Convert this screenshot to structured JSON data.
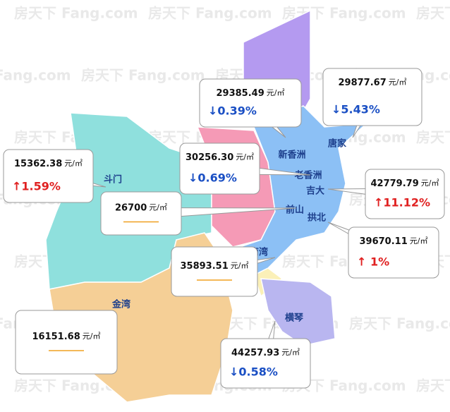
{
  "watermark": "房天下 Fang.com",
  "regions": [
    {
      "label": "斗门"
    },
    {
      "label": "金湾"
    },
    {
      "label": "新香洲"
    },
    {
      "label": "唐家"
    },
    {
      "label": "老香洲"
    },
    {
      "label": "吉大"
    },
    {
      "label": "前山"
    },
    {
      "label": "拱北"
    },
    {
      "label": "南湾"
    },
    {
      "label": "横琴"
    }
  ],
  "callouts": [
    {
      "price": "29385.49",
      "unit": "元/㎡",
      "change": "↓0.39%",
      "color": "#1a4fc4"
    },
    {
      "price": "29877.67",
      "unit": "元/㎡",
      "change": "↓5.43%",
      "color": "#1a4fc4"
    },
    {
      "price": "30256.30",
      "unit": "元/㎡",
      "change": "↓0.69%",
      "color": "#1a4fc4"
    },
    {
      "price": "15362.38",
      "unit": "元/㎡",
      "change": "↑1.59%",
      "color": "#e02020"
    },
    {
      "price": "26700",
      "unit": "元/㎡"
    },
    {
      "price": "42779.79",
      "unit": "元/㎡",
      "change": "↑11.12%",
      "color": "#e02020"
    },
    {
      "price": "39670.11",
      "unit": "元/㎡",
      "change": "↑ 1%",
      "color": "#e02020"
    },
    {
      "price": "35893.51",
      "unit": "元/㎡"
    },
    {
      "price": "16151.68",
      "unit": "元/㎡"
    },
    {
      "price": "44257.93",
      "unit": "元/㎡",
      "change": "↓0.58%",
      "color": "#1a4fc4"
    }
  ]
}
